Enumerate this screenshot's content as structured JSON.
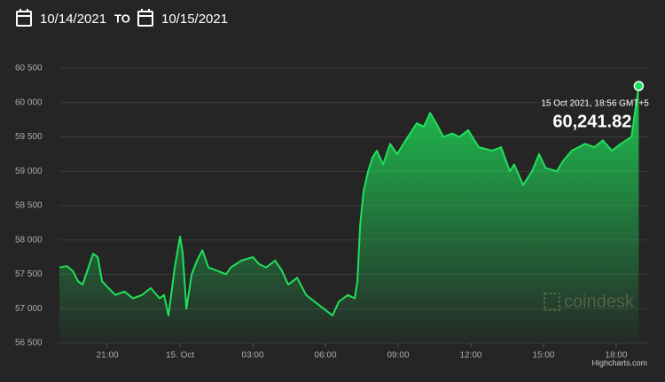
{
  "header": {
    "from": "10/14/2021",
    "separator": "TO",
    "to": "10/15/2021"
  },
  "chart_data": {
    "type": "area",
    "x": [
      19.02,
      19.32,
      19.57,
      19.79,
      19.98,
      20.12,
      20.41,
      20.6,
      20.78,
      21.04,
      21.33,
      21.7,
      22.06,
      22.43,
      22.79,
      23.16,
      23.34,
      23.52,
      23.78,
      24.0,
      24.11,
      24.26,
      24.48,
      24.7,
      24.92,
      25.17,
      25.54,
      25.9,
      26.09,
      26.53,
      27.0,
      27.26,
      27.55,
      27.92,
      28.21,
      28.46,
      28.83,
      29.2,
      29.56,
      29.93,
      30.29,
      30.55,
      30.92,
      31.21,
      31.32,
      31.43,
      31.57,
      31.76,
      31.94,
      32.12,
      32.38,
      32.67,
      32.96,
      33.4,
      33.77,
      34.06,
      34.32,
      34.57,
      34.87,
      35.23,
      35.53,
      35.89,
      36.33,
      36.88,
      37.25,
      37.61,
      37.79,
      38.16,
      38.53,
      38.82,
      39.08,
      39.55,
      39.81,
      40.17,
      40.72,
      41.09,
      41.45,
      41.82,
      42.19,
      42.63,
      42.93
    ],
    "values": [
      57600,
      57620,
      57550,
      57400,
      57350,
      57500,
      57800,
      57750,
      57400,
      57300,
      57200,
      57250,
      57150,
      57200,
      57300,
      57150,
      57200,
      56900,
      57600,
      58050,
      57800,
      57000,
      57500,
      57700,
      57850,
      57600,
      57550,
      57500,
      57600,
      57700,
      57750,
      57650,
      57600,
      57700,
      57550,
      57350,
      57450,
      57200,
      57100,
      57000,
      56900,
      57100,
      57200,
      57150,
      57400,
      58200,
      58700,
      59000,
      59200,
      59300,
      59100,
      59400,
      59250,
      59500,
      59700,
      59650,
      59850,
      59700,
      59500,
      59550,
      59500,
      59600,
      59350,
      59300,
      59350,
      59000,
      59100,
      58800,
      59000,
      59250,
      59050,
      59000,
      59150,
      59300,
      59400,
      59350,
      59450,
      59300,
      59400,
      59500,
      60241.82
    ],
    "color": "#1ee15a",
    "xlim": [
      19.02,
      43.1
    ],
    "xticks": [
      {
        "value": 21,
        "label": "21:00"
      },
      {
        "value": 24,
        "label": "15. Oct"
      },
      {
        "value": 27,
        "label": "03:00"
      },
      {
        "value": 30,
        "label": "06:00"
      },
      {
        "value": 33,
        "label": "09:00"
      },
      {
        "value": 36,
        "label": "12:00"
      },
      {
        "value": 39,
        "label": "15:00"
      },
      {
        "value": 42,
        "label": "18:00"
      }
    ],
    "ylim": [
      56500,
      60500
    ],
    "yticks": [
      {
        "value": 56500,
        "label": "56 500"
      },
      {
        "value": 57000,
        "label": "57 000"
      },
      {
        "value": 57500,
        "label": "57 500"
      },
      {
        "value": 58000,
        "label": "58 000"
      },
      {
        "value": 58500,
        "label": "58 500"
      },
      {
        "value": 59000,
        "label": "59 000"
      },
      {
        "value": 59500,
        "label": "59 500"
      },
      {
        "value": 60000,
        "label": "60 000"
      },
      {
        "value": 60500,
        "label": "60 500"
      }
    ],
    "grid": true,
    "tooltip": {
      "label": "15 Oct 2021, 18:56 GMT+5",
      "value_label": "60,241.82"
    },
    "watermark": "coindesk",
    "credit": "Highcharts.com"
  }
}
